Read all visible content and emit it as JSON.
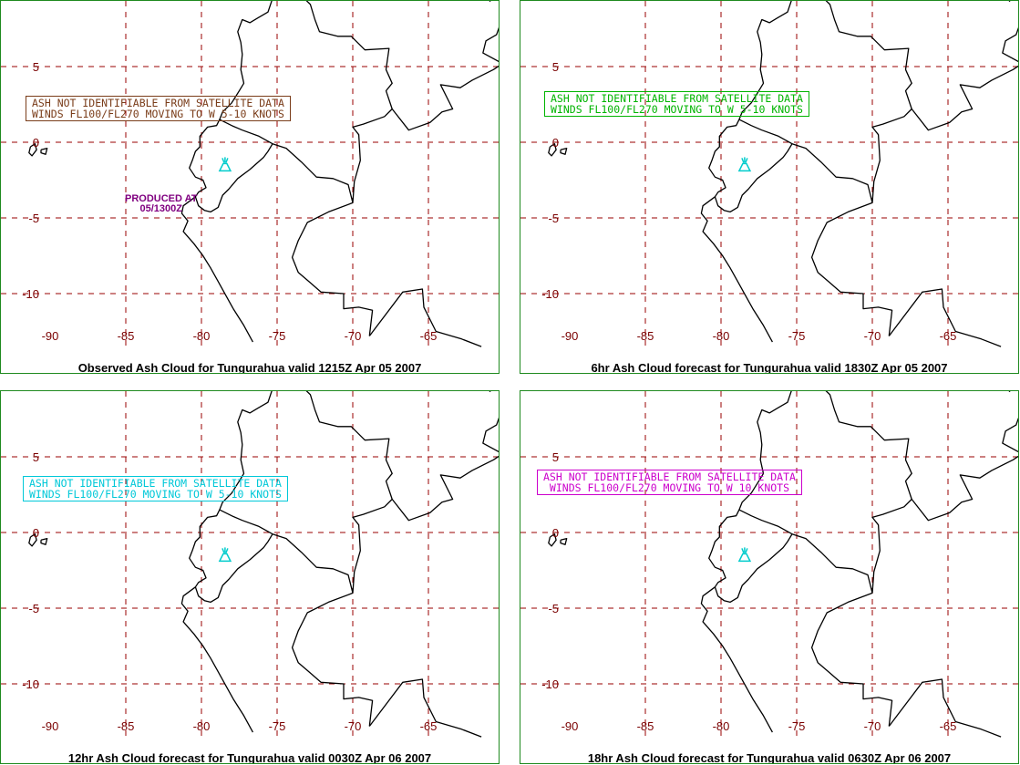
{
  "tick_labels": {
    "lat": [
      "5",
      "0",
      "-5",
      "-10"
    ],
    "lon": [
      "-90",
      "-85",
      "-80",
      "-75",
      "-70",
      "-65"
    ]
  },
  "colors": {
    "border": "#1f8a1f",
    "grid": "#990000",
    "volcano": "#00cccc"
  },
  "panels": [
    {
      "caption": "Observed Ash Cloud for Tungurahua valid 1215Z Apr 05 2007",
      "advisory": {
        "line1": "ASH NOT IDENTIFIABLE FROM SATELLITE DATA",
        "line2": "WINDS FL100/FL270 MOVING TO W 5-10 KNOTS",
        "color": "#7a3d1a"
      },
      "produced": {
        "line1": "PRODUCED AT",
        "line2": "05/1300Z"
      }
    },
    {
      "caption": "6hr Ash Cloud forecast for Tungurahua valid 1830Z Apr 05 2007",
      "advisory": {
        "line1": "ASH NOT IDENTIFIABLE FROM SATELLITE DATA",
        "line2": "WINDS FL100/FL270 MOVING TO W 5-10 KNOTS",
        "color": "#00b400"
      }
    },
    {
      "caption": "12hr Ash Cloud forecast for Tungurahua valid 0030Z Apr 06 2007",
      "advisory": {
        "line1": "ASH NOT IDENTIFIABLE FROM SATELLITE DATA",
        "line2": "WINDS FL100/FL270 MOVING TO W 5-10 KNOTS",
        "color": "#00c8d8"
      }
    },
    {
      "caption": "18hr Ash Cloud forecast for Tungurahua valid 0630Z Apr 06 2007",
      "advisory": {
        "line1": "ASH NOT IDENTIFIABLE FROM SATELLITE DATA",
        "line2": "WINDS FL100/FL270 MOVING TO W 10 KNOTS",
        "color": "#cc00cc"
      }
    }
  ]
}
